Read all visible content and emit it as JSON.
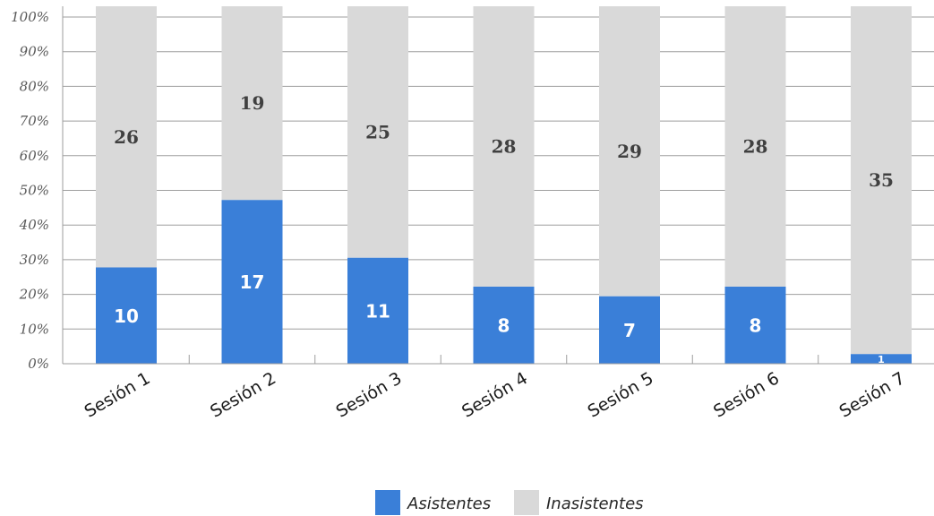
{
  "chart_data": {
    "type": "bar",
    "stacked": true,
    "percent_stacked": true,
    "categories": [
      "Sesión 1",
      "Sesión 2",
      "Sesión 3",
      "Sesión 4",
      "Sesión 5",
      "Sesión 6",
      "Sesión 7"
    ],
    "series": [
      {
        "name": "Asistentes",
        "values": [
          10,
          17,
          11,
          8,
          7,
          8,
          1
        ],
        "color": "#3a7fd8"
      },
      {
        "name": "Inasistentes",
        "values": [
          26,
          19,
          25,
          28,
          29,
          28,
          35
        ],
        "color": "#d9d9d9"
      }
    ],
    "yticks": [
      "0%",
      "10%",
      "20%",
      "30%",
      "40%",
      "50%",
      "60%",
      "70%",
      "80%",
      "90%",
      "100%"
    ],
    "ylim": [
      0,
      100
    ],
    "grid": true,
    "legend_position": "bottom",
    "title": "",
    "xlabel": "",
    "ylabel": ""
  }
}
